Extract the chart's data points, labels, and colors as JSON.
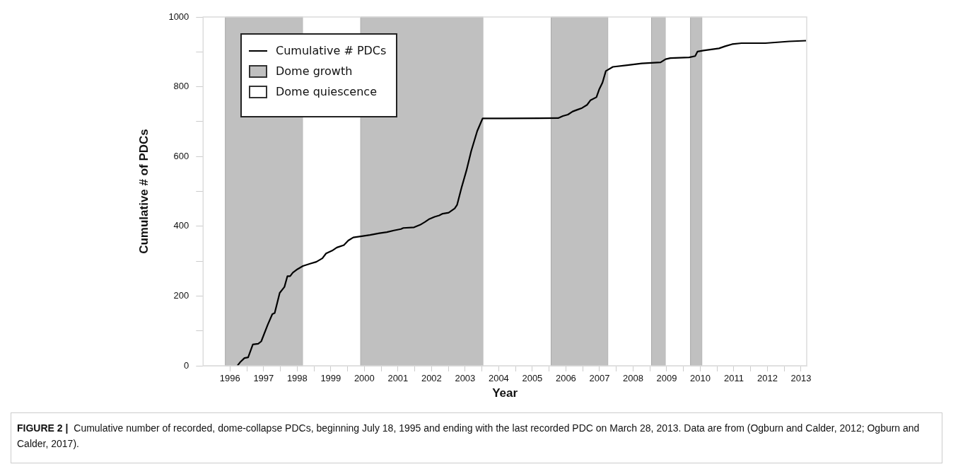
{
  "chart_data": {
    "type": "line",
    "xlabel": "Year",
    "ylabel": "Cumulative # of PDCs",
    "x": [
      1996.22,
      1996.3,
      1996.43,
      1996.54,
      1996.68,
      1996.84,
      1996.93,
      1997.12,
      1997.26,
      1997.33,
      1997.48,
      1997.62,
      1997.71,
      1997.79,
      1997.87,
      1998.01,
      1998.17,
      1998.4,
      1998.57,
      1998.75,
      1998.86,
      1999.04,
      1999.18,
      1999.39,
      1999.52,
      1999.67,
      1999.89,
      2000.17,
      2000.45,
      2000.67,
      2000.88,
      2001.09,
      2001.16,
      2001.48,
      2001.66,
      2001.8,
      2001.94,
      2002.09,
      2002.23,
      2002.33,
      2002.51,
      2002.69,
      2002.76,
      2002.9,
      2003.04,
      2003.18,
      2003.36,
      2003.52,
      2004.14,
      2005.77,
      2005.91,
      2006.06,
      2006.2,
      2006.34,
      2006.48,
      2006.63,
      2006.73,
      2006.91,
      2006.99,
      2007.09,
      2007.19,
      2007.4,
      2007.83,
      2008.26,
      2008.82,
      2008.97,
      2009.11,
      2009.67,
      2009.85,
      2009.92,
      2010.1,
      2010.56,
      2010.74,
      2010.95,
      2011.23,
      2011.94,
      2012.65,
      2013.15
    ],
    "series": [
      {
        "name": "Cumulative # PDCs",
        "color": "#000000",
        "values": [
          0,
          10,
          22,
          24,
          61,
          63,
          70,
          117,
          148,
          151,
          209,
          226,
          257,
          257,
          267,
          277,
          286,
          293,
          298,
          308,
          322,
          330,
          339,
          346,
          359,
          368,
          371,
          375,
          380,
          383,
          388,
          392,
          395,
          397,
          404,
          412,
          421,
          427,
          431,
          436,
          439,
          451,
          461,
          513,
          560,
          615,
          673,
          709,
          709,
          710,
          716,
          720,
          729,
          734,
          739,
          748,
          761,
          770,
          792,
          812,
          845,
          857,
          862,
          867,
          870,
          879,
          882,
          884,
          888,
          901,
          904,
          910,
          916,
          922,
          925,
          925,
          930,
          932
        ]
      }
    ],
    "xlim": [
      1995.2,
      2013.17
    ],
    "xticks": [
      1996,
      {
        "value": 1996.5,
        "label": null
      },
      1997,
      {
        "value": 1997.5,
        "label": null
      },
      1998,
      {
        "value": 1998.5,
        "label": null
      },
      1999,
      {
        "value": 1999.5,
        "label": null
      },
      2000,
      {
        "value": 2000.5,
        "label": null
      },
      2001,
      {
        "value": 2001.5,
        "label": null
      },
      2002,
      {
        "value": 2002.5,
        "label": null
      },
      2003,
      {
        "value": 2003.5,
        "label": null
      },
      2004,
      {
        "value": 2004.5,
        "label": null
      },
      2005,
      {
        "value": 2005.5,
        "label": null
      },
      2006,
      {
        "value": 2006.5,
        "label": null
      },
      2007,
      {
        "value": 2007.5,
        "label": null
      },
      2008,
      {
        "value": 2008.5,
        "label": null
      },
      2009,
      {
        "value": 2009.5,
        "label": null
      },
      2010,
      {
        "value": 2010.5,
        "label": null
      },
      2011,
      {
        "value": 2011.5,
        "label": null
      },
      2012,
      {
        "value": 2012.5,
        "label": null
      },
      2013
    ],
    "ylim": [
      0,
      1000
    ],
    "yticks": [
      0,
      {
        "value": 100,
        "label": null
      },
      200,
      {
        "value": 300,
        "label": null
      },
      400,
      {
        "value": 500,
        "label": null
      },
      600,
      {
        "value": 700,
        "label": null
      },
      800,
      {
        "value": 900,
        "label": null
      },
      1000
    ],
    "bands": [
      {
        "axis": "x",
        "from": 1995.86,
        "to": 1998.17,
        "label": "Dome growth",
        "color": "#c0c0c0"
      },
      {
        "axis": "x",
        "from": 1998.17,
        "to": 1999.89,
        "label": "Dome quiescence",
        "color": "#ffffff"
      },
      {
        "axis": "x",
        "from": 1999.89,
        "to": 2003.54,
        "color": "#c0c0c0"
      },
      {
        "axis": "x",
        "from": 2003.54,
        "to": 2005.56,
        "color": "#ffffff"
      },
      {
        "axis": "x",
        "from": 2005.56,
        "to": 2007.26,
        "color": "#c0c0c0"
      },
      {
        "axis": "x",
        "from": 2007.26,
        "to": 2008.55,
        "color": "#ffffff"
      },
      {
        "axis": "x",
        "from": 2008.55,
        "to": 2008.97,
        "color": "#c0c0c0"
      },
      {
        "axis": "x",
        "from": 2008.97,
        "to": 2009.71,
        "color": "#ffffff"
      },
      {
        "axis": "x",
        "from": 2009.71,
        "to": 2010.06,
        "color": "#c0c0c0"
      },
      {
        "axis": "x",
        "from": 2010.06,
        "to": 2013.17,
        "color": "#ffffff"
      }
    ],
    "grid": false,
    "legend": "top left",
    "marker": "none",
    "line_style": "solid",
    "annotations": [
      "FIGURE 2 |",
      "Cumulative number of recorded, dome-collapse PDCs, beginning July 18, 1995 and ending with the last recorded PDC on March 28, 2013. Data are from (Ogburn and Calder, 2012; Ogburn and Calder, 2017)."
    ]
  }
}
